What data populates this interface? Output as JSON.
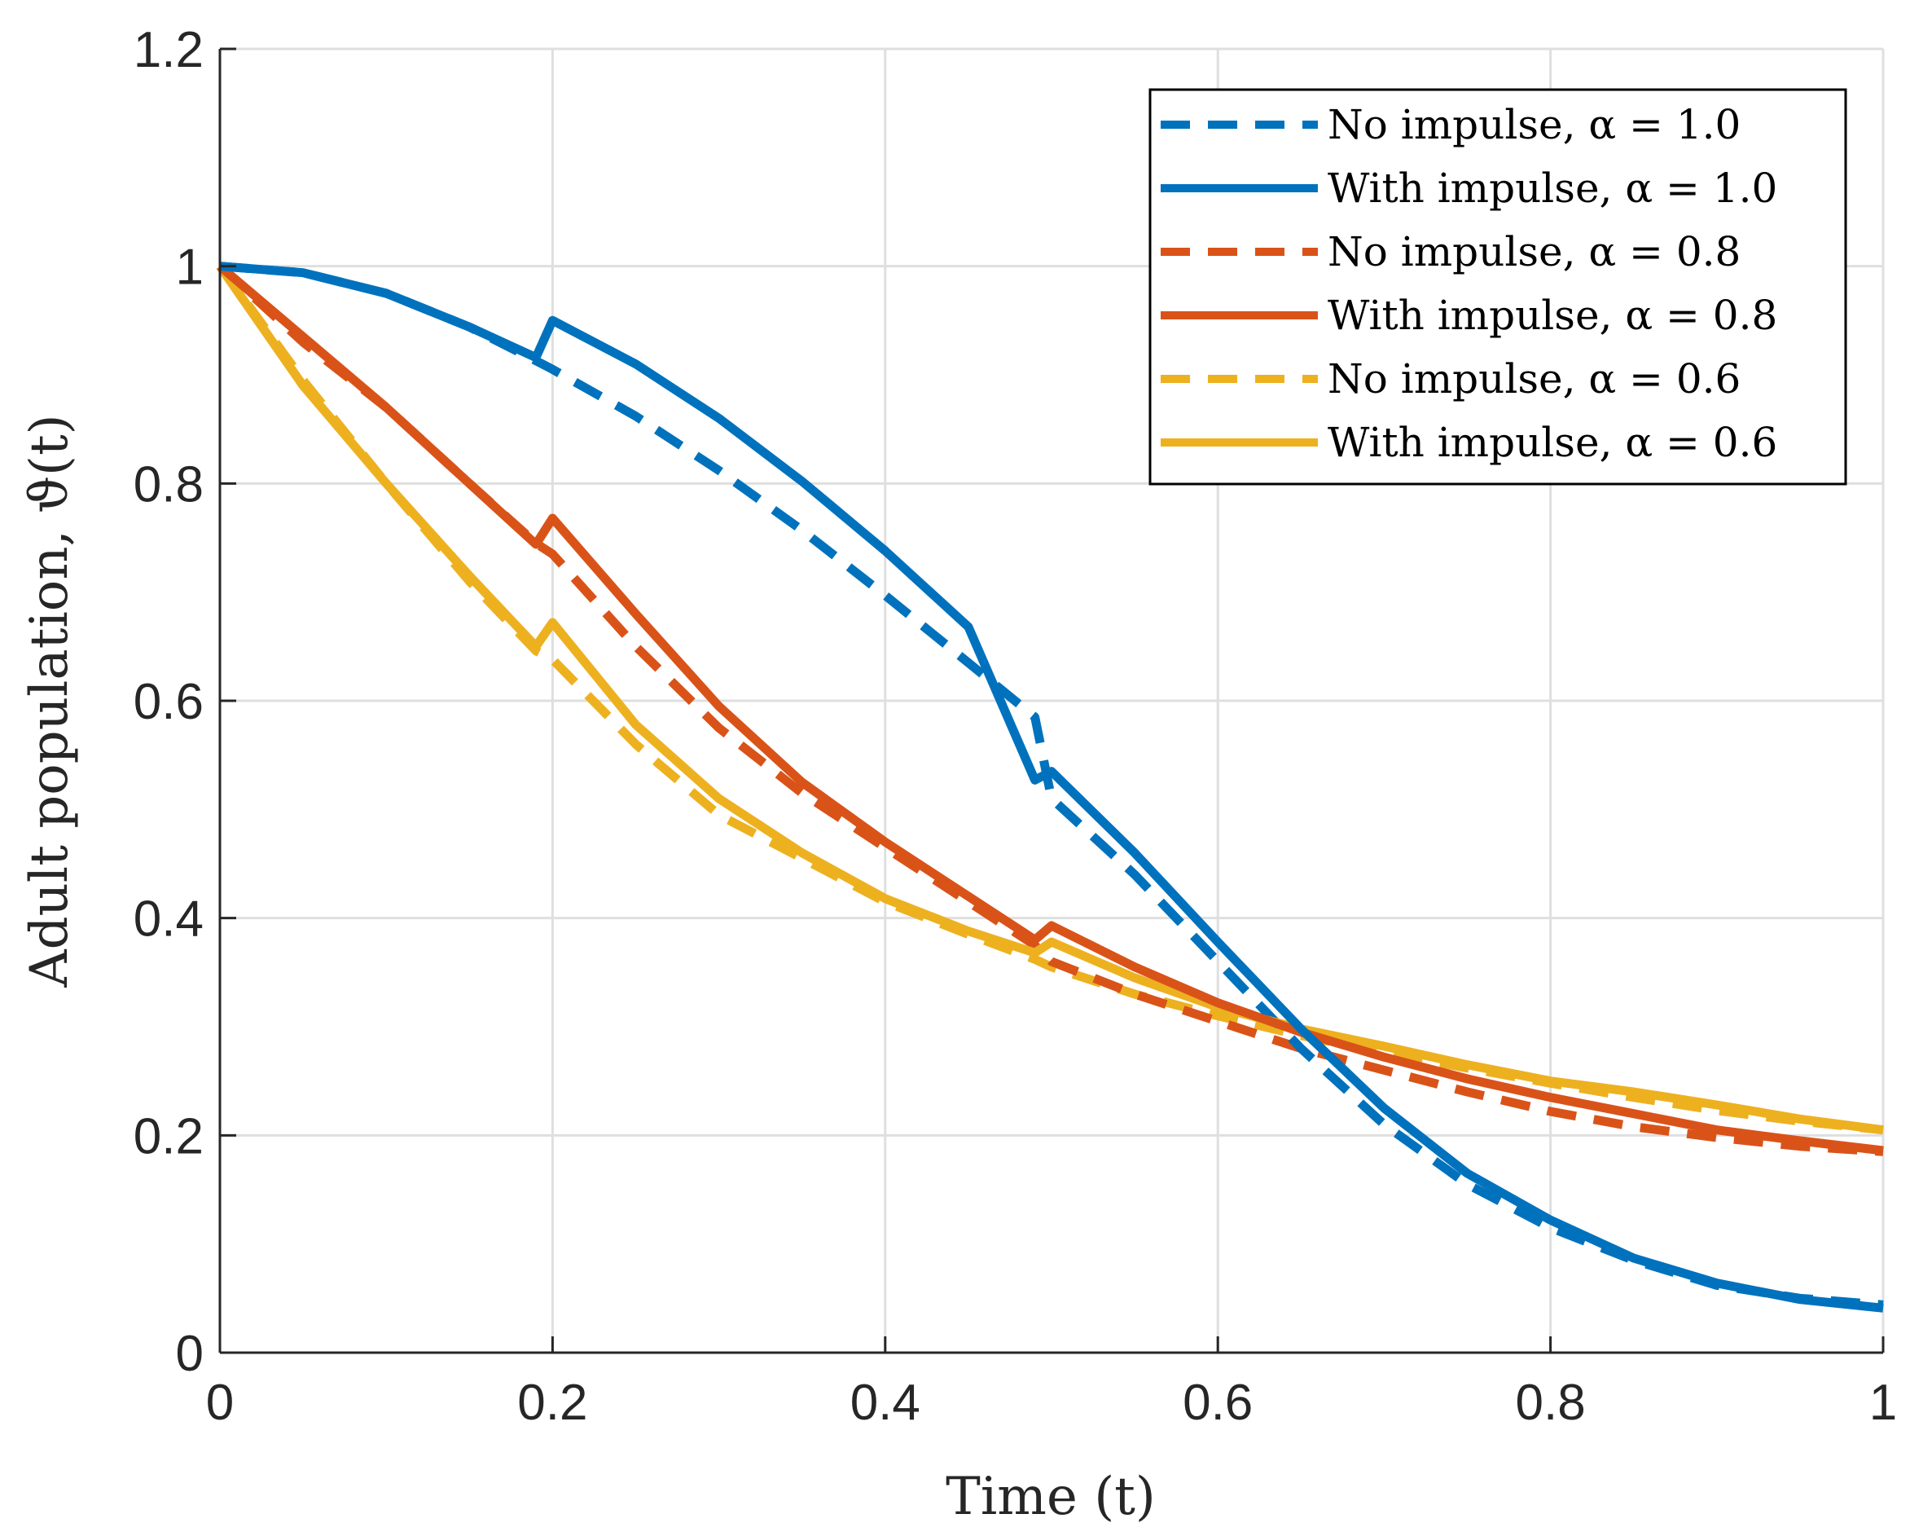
{
  "chart_data": {
    "type": "line",
    "title": "",
    "xlabel": "Time (t)",
    "ylabel": "Adult population, ϑ(t)",
    "xlim": [
      0,
      1
    ],
    "ylim": [
      0,
      1.2
    ],
    "xticks": [
      0,
      0.2,
      0.4,
      0.6,
      0.8,
      1
    ],
    "xtick_labels": [
      "0",
      "0.2",
      "0.4",
      "0.6",
      "0.8",
      "1"
    ],
    "yticks": [
      0,
      0.2,
      0.4,
      0.6,
      0.8,
      1,
      1.2
    ],
    "ytick_labels": [
      "0",
      "0.2",
      "0.4",
      "0.6",
      "0.8",
      "1",
      "1.2"
    ],
    "grid": true,
    "legend_position": "top-right",
    "series": [
      {
        "name": "No impulse, α = 1.0",
        "color": "#0072BD",
        "style": "dashed",
        "x": [
          0,
          0.05,
          0.1,
          0.15,
          0.19,
          0.2,
          0.25,
          0.3,
          0.35,
          0.4,
          0.45,
          0.49,
          0.5,
          0.55,
          0.6,
          0.65,
          0.7,
          0.75,
          0.8,
          0.85,
          0.9,
          0.95,
          1.0
        ],
        "y": [
          1.0,
          0.994,
          0.975,
          0.944,
          0.913,
          0.905,
          0.862,
          0.812,
          0.757,
          0.697,
          0.635,
          0.585,
          0.51,
          0.44,
          0.36,
          0.28,
          0.21,
          0.155,
          0.115,
          0.085,
          0.062,
          0.05,
          0.044
        ]
      },
      {
        "name": "With impulse, α = 1.0",
        "color": "#0072BD",
        "style": "solid",
        "x": [
          0,
          0.05,
          0.1,
          0.15,
          0.19,
          0.2,
          0.25,
          0.3,
          0.35,
          0.4,
          0.45,
          0.49,
          0.5,
          0.55,
          0.6,
          0.65,
          0.7,
          0.75,
          0.8,
          0.85,
          0.9,
          0.95,
          1.0
        ],
        "y": [
          1.0,
          0.994,
          0.975,
          0.944,
          0.916,
          0.95,
          0.91,
          0.86,
          0.802,
          0.738,
          0.668,
          0.527,
          0.535,
          0.46,
          0.378,
          0.298,
          0.225,
          0.165,
          0.122,
          0.087,
          0.064,
          0.049,
          0.041
        ]
      },
      {
        "name": "No impulse, α = 0.8",
        "color": "#D95319",
        "style": "dashed",
        "x": [
          0,
          0.05,
          0.1,
          0.15,
          0.19,
          0.2,
          0.25,
          0.3,
          0.35,
          0.4,
          0.45,
          0.49,
          0.5,
          0.55,
          0.6,
          0.65,
          0.7,
          0.75,
          0.8,
          0.85,
          0.9,
          0.95,
          1.0
        ],
        "y": [
          1.0,
          0.93,
          0.87,
          0.8,
          0.745,
          0.735,
          0.65,
          0.575,
          0.515,
          0.465,
          0.415,
          0.375,
          0.36,
          0.33,
          0.305,
          0.28,
          0.26,
          0.24,
          0.222,
          0.208,
          0.198,
          0.19,
          0.185
        ]
      },
      {
        "name": "With impulse, α = 0.8",
        "color": "#D95319",
        "style": "solid",
        "x": [
          0,
          0.05,
          0.1,
          0.15,
          0.19,
          0.2,
          0.25,
          0.3,
          0.35,
          0.4,
          0.45,
          0.49,
          0.5,
          0.55,
          0.6,
          0.65,
          0.7,
          0.75,
          0.8,
          0.85,
          0.9,
          0.95,
          1.0
        ],
        "y": [
          1.0,
          0.935,
          0.87,
          0.8,
          0.744,
          0.768,
          0.68,
          0.595,
          0.525,
          0.47,
          0.42,
          0.38,
          0.393,
          0.355,
          0.322,
          0.295,
          0.272,
          0.252,
          0.235,
          0.22,
          0.205,
          0.195,
          0.186
        ]
      },
      {
        "name": "No impulse, α = 0.6",
        "color": "#EDB120",
        "style": "dashed",
        "x": [
          0,
          0.05,
          0.1,
          0.15,
          0.19,
          0.2,
          0.25,
          0.3,
          0.35,
          0.4,
          0.45,
          0.49,
          0.5,
          0.55,
          0.6,
          0.65,
          0.7,
          0.75,
          0.8,
          0.85,
          0.9,
          0.95,
          1.0
        ],
        "y": [
          1.0,
          0.895,
          0.8,
          0.71,
          0.646,
          0.638,
          0.56,
          0.495,
          0.455,
          0.415,
          0.385,
          0.362,
          0.355,
          0.33,
          0.31,
          0.292,
          0.276,
          0.262,
          0.248,
          0.235,
          0.223,
          0.213,
          0.205
        ]
      },
      {
        "name": "With impulse, α = 0.6",
        "color": "#EDB120",
        "style": "solid",
        "x": [
          0,
          0.05,
          0.1,
          0.15,
          0.19,
          0.2,
          0.25,
          0.3,
          0.35,
          0.4,
          0.45,
          0.49,
          0.5,
          0.55,
          0.6,
          0.65,
          0.7,
          0.75,
          0.8,
          0.85,
          0.9,
          0.95,
          1.0
        ],
        "y": [
          1.0,
          0.89,
          0.8,
          0.715,
          0.65,
          0.672,
          0.578,
          0.51,
          0.46,
          0.418,
          0.388,
          0.368,
          0.378,
          0.345,
          0.318,
          0.298,
          0.282,
          0.265,
          0.25,
          0.24,
          0.228,
          0.215,
          0.205
        ]
      }
    ]
  }
}
